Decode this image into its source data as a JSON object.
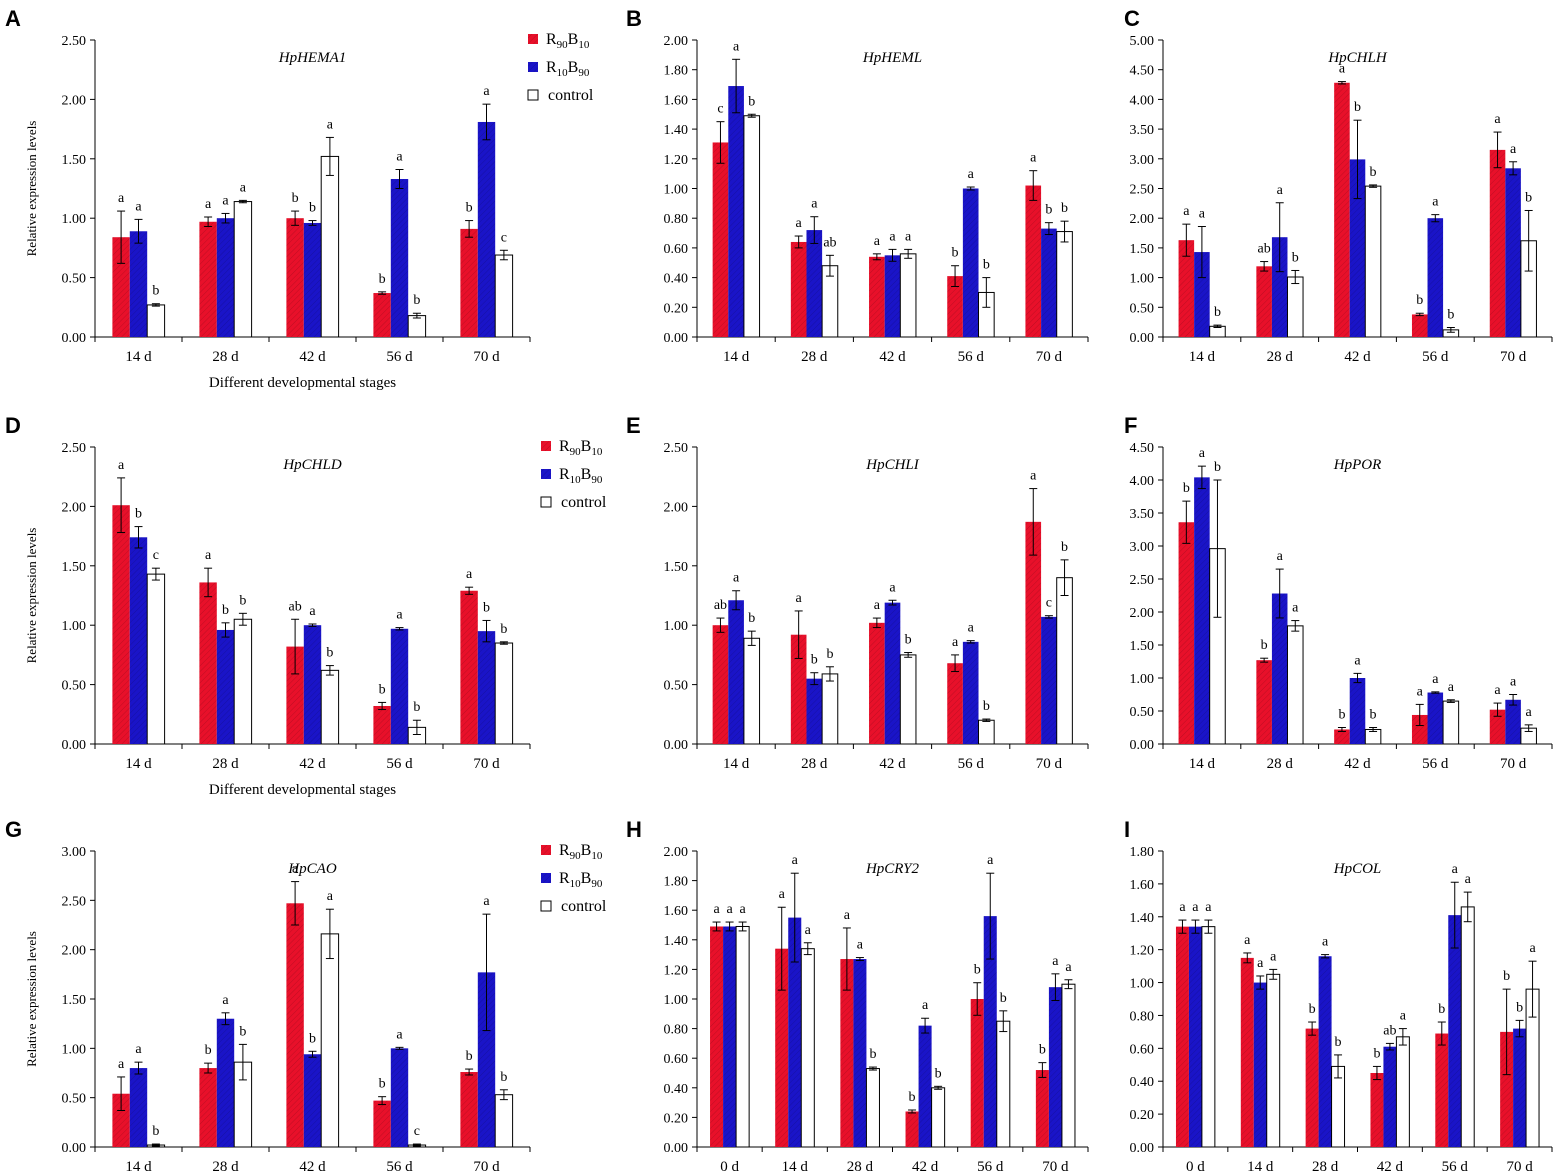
{
  "colors": {
    "r90b10": "#e8102a",
    "r10b90": "#1a14c8",
    "control": "#ffffff",
    "axis": "#000000"
  },
  "legend": {
    "r90b10": {
      "main1": "R",
      "sub1": "90",
      "main2": "B",
      "sub2": "10"
    },
    "r10b90": {
      "main1": "R",
      "sub1": "10",
      "main2": "B",
      "sub2": "90"
    },
    "control": "control"
  },
  "ylabel": "Relative expression levels",
  "xlabel": "Different developmental stages",
  "chart_data": [
    {
      "id": "A",
      "letter": "A",
      "type": "bar",
      "title": "HpHEMA1",
      "ymax": 2.5,
      "ystep": 0.5,
      "ylabel": true,
      "xlabel": true,
      "legend": true,
      "categories": [
        "14 d",
        "28 d",
        "42 d",
        "56 d",
        "70 d"
      ],
      "series": [
        {
          "name": "R90B10",
          "values": [
            0.84,
            0.97,
            1.0,
            0.37,
            0.91
          ],
          "err": [
            0.22,
            0.04,
            0.06,
            0.01,
            0.07
          ],
          "sig": [
            "a",
            "a",
            "b",
            "b",
            "b"
          ]
        },
        {
          "name": "R10B90",
          "values": [
            0.89,
            1.0,
            0.96,
            1.33,
            1.81
          ],
          "err": [
            0.1,
            0.04,
            0.02,
            0.08,
            0.15
          ],
          "sig": [
            "a",
            "a",
            "b",
            "a",
            "a"
          ]
        },
        {
          "name": "control",
          "values": [
            0.27,
            1.14,
            1.52,
            0.18,
            0.69
          ],
          "err": [
            0.01,
            0.01,
            0.16,
            0.02,
            0.04
          ],
          "sig": [
            "b",
            "a",
            "a",
            "b",
            "c"
          ]
        }
      ]
    },
    {
      "id": "B",
      "letter": "B",
      "type": "bar",
      "title": "HpHEML",
      "ymax": 2.0,
      "ystep": 0.2,
      "ylabel": false,
      "xlabel": false,
      "legend": false,
      "categories": [
        "14 d",
        "28 d",
        "42 d",
        "56 d",
        "70 d"
      ],
      "series": [
        {
          "name": "R90B10",
          "values": [
            1.31,
            0.64,
            0.54,
            0.41,
            1.02
          ],
          "err": [
            0.14,
            0.04,
            0.02,
            0.07,
            0.1
          ],
          "sig": [
            "c",
            "a",
            "a",
            "b",
            "a"
          ]
        },
        {
          "name": "R10B90",
          "values": [
            1.69,
            0.72,
            0.55,
            1.0,
            0.73
          ],
          "err": [
            0.18,
            0.09,
            0.04,
            0.01,
            0.04
          ],
          "sig": [
            "a",
            "a",
            "a",
            "a",
            "b"
          ]
        },
        {
          "name": "control",
          "values": [
            1.49,
            0.48,
            0.56,
            0.3,
            0.71
          ],
          "err": [
            0.01,
            0.07,
            0.03,
            0.1,
            0.07
          ],
          "sig": [
            "b",
            "ab",
            "a",
            "b",
            "b"
          ]
        }
      ]
    },
    {
      "id": "C",
      "letter": "C",
      "type": "bar",
      "title": "HpCHLH",
      "ymax": 5.0,
      "ystep": 0.5,
      "ylabel": false,
      "xlabel": false,
      "legend": false,
      "categories": [
        "14 d",
        "28 d",
        "42 d",
        "56 d",
        "70 d"
      ],
      "series": [
        {
          "name": "R90B10",
          "values": [
            1.63,
            1.19,
            4.28,
            0.38,
            3.15
          ],
          "err": [
            0.27,
            0.08,
            0.02,
            0.02,
            0.3
          ],
          "sig": [
            "a",
            "ab",
            "a",
            "b",
            "a"
          ]
        },
        {
          "name": "R10B90",
          "values": [
            1.43,
            1.68,
            2.99,
            2.0,
            2.84
          ],
          "err": [
            0.43,
            0.58,
            0.66,
            0.06,
            0.11
          ],
          "sig": [
            "a",
            "a",
            "b",
            "a",
            "a"
          ]
        },
        {
          "name": "control",
          "values": [
            0.18,
            1.01,
            2.54,
            0.12,
            1.62
          ],
          "err": [
            0.02,
            0.11,
            0.02,
            0.04,
            0.51
          ],
          "sig": [
            "b",
            "b",
            "b",
            "b",
            "b"
          ]
        }
      ]
    },
    {
      "id": "D",
      "letter": "D",
      "type": "bar",
      "title": "HpCHLD",
      "ymax": 2.5,
      "ystep": 0.5,
      "ylabel": true,
      "xlabel": true,
      "legend": true,
      "categories": [
        "14 d",
        "28 d",
        "42 d",
        "56 d",
        "70 d"
      ],
      "series": [
        {
          "name": "R90B10",
          "values": [
            2.01,
            1.36,
            0.82,
            0.32,
            1.29
          ],
          "err": [
            0.23,
            0.12,
            0.23,
            0.03,
            0.03
          ],
          "sig": [
            "a",
            "a",
            "ab",
            "b",
            "a"
          ]
        },
        {
          "name": "R10B90",
          "values": [
            1.74,
            0.96,
            1.0,
            0.97,
            0.95
          ],
          "err": [
            0.09,
            0.06,
            0.01,
            0.01,
            0.09
          ],
          "sig": [
            "b",
            "b",
            "a",
            "a",
            "b"
          ]
        },
        {
          "name": "control",
          "values": [
            1.43,
            1.05,
            0.62,
            0.14,
            0.85
          ],
          "err": [
            0.05,
            0.05,
            0.04,
            0.06,
            0.01
          ],
          "sig": [
            "c",
            "b",
            "b",
            "b",
            "b"
          ]
        }
      ]
    },
    {
      "id": "E",
      "letter": "E",
      "type": "bar",
      "title": "HpCHLI",
      "ymax": 2.5,
      "ystep": 0.5,
      "ylabel": false,
      "xlabel": false,
      "legend": false,
      "categories": [
        "14 d",
        "28 d",
        "42 d",
        "56 d",
        "70 d"
      ],
      "series": [
        {
          "name": "R90B10",
          "values": [
            1.0,
            0.92,
            1.02,
            0.68,
            1.87
          ],
          "err": [
            0.06,
            0.2,
            0.04,
            0.07,
            0.28
          ],
          "sig": [
            "ab",
            "a",
            "a",
            "a",
            "a"
          ]
        },
        {
          "name": "R10B90",
          "values": [
            1.21,
            0.55,
            1.19,
            0.86,
            1.07
          ],
          "err": [
            0.08,
            0.05,
            0.02,
            0.01,
            0.01
          ],
          "sig": [
            "a",
            "b",
            "a",
            "a",
            "c"
          ]
        },
        {
          "name": "control",
          "values": [
            0.89,
            0.59,
            0.75,
            0.2,
            1.4
          ],
          "err": [
            0.06,
            0.06,
            0.02,
            0.01,
            0.15
          ],
          "sig": [
            "b",
            "b",
            "b",
            "b",
            "b"
          ]
        }
      ]
    },
    {
      "id": "F",
      "letter": "F",
      "type": "bar",
      "title": "HpPOR",
      "ymax": 4.5,
      "ystep": 0.5,
      "ylabel": false,
      "xlabel": false,
      "legend": false,
      "categories": [
        "14 d",
        "28 d",
        "42 d",
        "56 d",
        "70 d"
      ],
      "series": [
        {
          "name": "R90B10",
          "values": [
            3.36,
            1.27,
            0.22,
            0.44,
            0.52
          ],
          "err": [
            0.32,
            0.03,
            0.03,
            0.16,
            0.1
          ],
          "sig": [
            "b",
            "b",
            "b",
            "a",
            "a"
          ]
        },
        {
          "name": "R10B90",
          "values": [
            4.04,
            2.28,
            1.0,
            0.78,
            0.67
          ],
          "err": [
            0.17,
            0.37,
            0.07,
            0.01,
            0.08
          ],
          "sig": [
            "a",
            "a",
            "a",
            "a",
            "a"
          ]
        },
        {
          "name": "control",
          "values": [
            2.96,
            1.79,
            0.22,
            0.65,
            0.24
          ],
          "err": [
            1.04,
            0.08,
            0.03,
            0.02,
            0.05
          ],
          "sig": [
            "b",
            "a",
            "b",
            "a",
            "a"
          ]
        }
      ]
    },
    {
      "id": "G",
      "letter": "G",
      "type": "bar",
      "title": "HpCAO",
      "ymax": 3.0,
      "ystep": 0.5,
      "ylabel": true,
      "xlabel": false,
      "legend": true,
      "categories": [
        "14 d",
        "28 d",
        "42 d",
        "56 d",
        "70 d"
      ],
      "series": [
        {
          "name": "R90B10",
          "values": [
            0.54,
            0.8,
            2.47,
            0.47,
            0.76
          ],
          "err": [
            0.17,
            0.05,
            0.22,
            0.04,
            0.03
          ],
          "sig": [
            "a",
            "b",
            "a",
            "b",
            "b"
          ]
        },
        {
          "name": "R10B90",
          "values": [
            0.8,
            1.3,
            0.94,
            1.0,
            1.77
          ],
          "err": [
            0.06,
            0.06,
            0.03,
            0.01,
            0.59
          ],
          "sig": [
            "a",
            "a",
            "b",
            "a",
            "a"
          ]
        },
        {
          "name": "control",
          "values": [
            0.02,
            0.86,
            2.16,
            0.02,
            0.53
          ],
          "err": [
            0.01,
            0.18,
            0.25,
            0.01,
            0.05
          ],
          "sig": [
            "b",
            "b",
            "a",
            "c",
            "b"
          ]
        }
      ]
    },
    {
      "id": "H",
      "letter": "H",
      "type": "bar",
      "title": "HpCRY2",
      "ymax": 2.0,
      "ystep": 0.2,
      "ylabel": false,
      "xlabel": false,
      "legend": false,
      "categories": [
        "0 d",
        "14 d",
        "28 d",
        "42 d",
        "56 d",
        "70 d"
      ],
      "series": [
        {
          "name": "R90B10",
          "values": [
            1.49,
            1.34,
            1.27,
            0.24,
            1.0,
            0.52
          ],
          "err": [
            0.03,
            0.28,
            0.21,
            0.01,
            0.11,
            0.05
          ],
          "sig": [
            "a",
            "a",
            "a",
            "b",
            "b",
            "b"
          ]
        },
        {
          "name": "R10B90",
          "values": [
            1.49,
            1.55,
            1.27,
            0.82,
            1.56,
            1.08
          ],
          "err": [
            0.03,
            0.3,
            0.01,
            0.05,
            0.29,
            0.09
          ],
          "sig": [
            "a",
            "a",
            "a",
            "a",
            "a",
            "a"
          ]
        },
        {
          "name": "control",
          "values": [
            1.49,
            1.34,
            0.53,
            0.4,
            0.85,
            1.1
          ],
          "err": [
            0.03,
            0.04,
            0.01,
            0.01,
            0.07,
            0.03
          ],
          "sig": [
            "a",
            "a",
            "b",
            "b",
            "b",
            "a"
          ]
        }
      ]
    },
    {
      "id": "I",
      "letter": "I",
      "type": "bar",
      "title": "HpCOL",
      "ymax": 1.8,
      "ystep": 0.2,
      "ylabel": false,
      "xlabel": false,
      "legend": false,
      "categories": [
        "0 d",
        "14 d",
        "28 d",
        "42 d",
        "56 d",
        "70 d"
      ],
      "series": [
        {
          "name": "R90B10",
          "values": [
            1.34,
            1.15,
            0.72,
            0.45,
            0.69,
            0.7
          ],
          "err": [
            0.04,
            0.03,
            0.04,
            0.04,
            0.07,
            0.26
          ],
          "sig": [
            "a",
            "a",
            "b",
            "b",
            "b",
            "b"
          ]
        },
        {
          "name": "R10B90",
          "values": [
            1.34,
            1.0,
            1.16,
            0.61,
            1.41,
            0.72
          ],
          "err": [
            0.04,
            0.04,
            0.01,
            0.02,
            0.2,
            0.05
          ],
          "sig": [
            "a",
            "a",
            "a",
            "ab",
            "a",
            "b"
          ]
        },
        {
          "name": "control",
          "values": [
            1.34,
            1.05,
            0.49,
            0.67,
            1.46,
            0.96
          ],
          "err": [
            0.04,
            0.03,
            0.07,
            0.05,
            0.09,
            0.17
          ],
          "sig": [
            "a",
            "a",
            "b",
            "a",
            "a",
            "a"
          ]
        }
      ]
    }
  ]
}
